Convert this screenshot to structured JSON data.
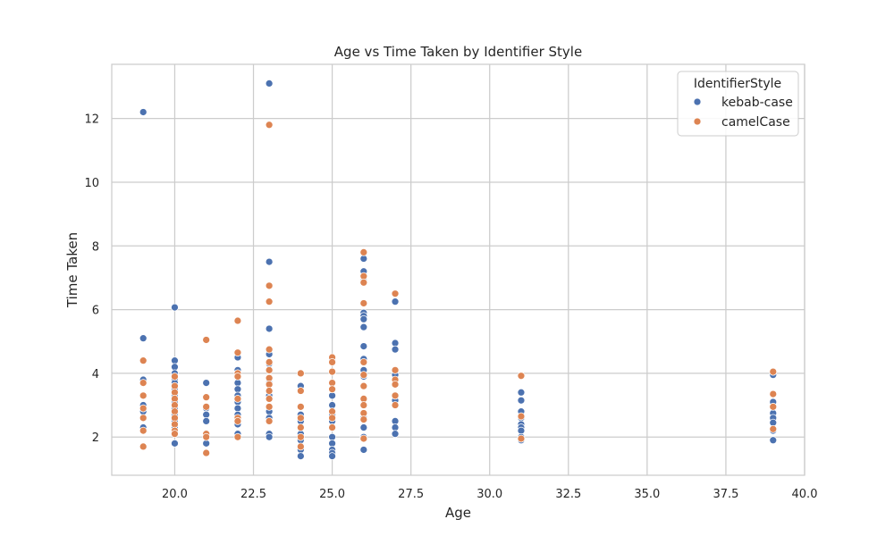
{
  "chart_data": {
    "type": "scatter",
    "title": "Age vs Time Taken by Identifier Style",
    "xlabel": "Age",
    "ylabel": "Time Taken",
    "xlim": [
      18.0,
      40.0
    ],
    "ylim": [
      0.8,
      13.7
    ],
    "x_ticks": [
      20.0,
      22.5,
      25.0,
      27.5,
      30.0,
      32.5,
      35.0,
      37.5,
      40.0
    ],
    "x_tick_labels": [
      "20.0",
      "22.5",
      "25.0",
      "27.5",
      "30.0",
      "32.5",
      "35.0",
      "37.5",
      "40.0"
    ],
    "y_ticks": [
      2,
      4,
      6,
      8,
      10,
      12
    ],
    "y_tick_labels": [
      "2",
      "4",
      "6",
      "8",
      "10",
      "12"
    ],
    "grid": true,
    "legend": {
      "title": "IdentifierStyle",
      "placement": "top-right"
    },
    "series": [
      {
        "name": "kebab-case",
        "color": "#4c72b0",
        "points": [
          [
            19,
            12.2
          ],
          [
            19,
            5.1
          ],
          [
            19,
            3.8
          ],
          [
            19,
            3.0
          ],
          [
            19,
            2.8
          ],
          [
            19,
            2.3
          ],
          [
            20,
            6.07
          ],
          [
            20,
            4.4
          ],
          [
            20,
            4.2
          ],
          [
            20,
            4.0
          ],
          [
            20,
            3.8
          ],
          [
            20,
            3.7
          ],
          [
            20,
            3.5
          ],
          [
            20,
            3.3
          ],
          [
            20,
            3.1
          ],
          [
            20,
            2.9
          ],
          [
            20,
            2.7
          ],
          [
            20,
            2.5
          ],
          [
            20,
            2.3
          ],
          [
            20,
            1.8
          ],
          [
            21,
            3.7
          ],
          [
            21,
            2.9
          ],
          [
            21,
            2.7
          ],
          [
            21,
            2.5
          ],
          [
            21,
            1.8
          ],
          [
            22,
            4.5
          ],
          [
            22,
            4.1
          ],
          [
            22,
            3.7
          ],
          [
            22,
            3.5
          ],
          [
            22,
            3.3
          ],
          [
            22,
            3.1
          ],
          [
            22,
            2.9
          ],
          [
            22,
            2.7
          ],
          [
            22,
            2.4
          ],
          [
            22,
            2.1
          ],
          [
            23,
            13.1
          ],
          [
            23,
            7.5
          ],
          [
            23,
            5.4
          ],
          [
            23,
            4.6
          ],
          [
            23,
            4.3
          ],
          [
            23,
            3.7
          ],
          [
            23,
            3.3
          ],
          [
            23,
            2.8
          ],
          [
            23,
            2.6
          ],
          [
            23,
            2.1
          ],
          [
            23,
            2.0
          ],
          [
            24,
            3.6
          ],
          [
            24,
            2.7
          ],
          [
            24,
            2.5
          ],
          [
            24,
            2.1
          ],
          [
            24,
            1.9
          ],
          [
            24,
            1.6
          ],
          [
            24,
            1.4
          ],
          [
            25,
            4.4
          ],
          [
            25,
            3.5
          ],
          [
            25,
            3.3
          ],
          [
            25,
            3.0
          ],
          [
            25,
            2.7
          ],
          [
            25,
            2.5
          ],
          [
            25,
            2.3
          ],
          [
            25,
            2.0
          ],
          [
            25,
            1.8
          ],
          [
            25,
            1.6
          ],
          [
            25,
            1.5
          ],
          [
            25,
            1.4
          ],
          [
            26,
            7.6
          ],
          [
            26,
            7.2
          ],
          [
            26,
            6.9
          ],
          [
            26,
            5.9
          ],
          [
            26,
            5.8
          ],
          [
            26,
            5.7
          ],
          [
            26,
            5.45
          ],
          [
            26,
            4.85
          ],
          [
            26,
            4.45
          ],
          [
            26,
            4.1
          ],
          [
            26,
            3.9
          ],
          [
            26,
            3.6
          ],
          [
            26,
            3.0
          ],
          [
            26,
            2.6
          ],
          [
            26,
            2.3
          ],
          [
            26,
            2.0
          ],
          [
            26,
            1.6
          ],
          [
            27,
            6.25
          ],
          [
            27,
            4.95
          ],
          [
            27,
            4.75
          ],
          [
            27,
            3.95
          ],
          [
            27,
            3.15
          ],
          [
            27,
            2.5
          ],
          [
            27,
            2.3
          ],
          [
            27,
            2.1
          ],
          [
            31,
            3.4
          ],
          [
            31,
            3.15
          ],
          [
            31,
            2.8
          ],
          [
            31,
            2.6
          ],
          [
            31,
            2.4
          ],
          [
            31,
            2.3
          ],
          [
            31,
            2.2
          ],
          [
            31,
            2.0
          ],
          [
            31,
            1.9
          ],
          [
            39,
            3.95
          ],
          [
            39,
            3.1
          ],
          [
            39,
            2.95
          ],
          [
            39,
            2.75
          ],
          [
            39,
            2.6
          ],
          [
            39,
            2.45
          ],
          [
            39,
            2.2
          ],
          [
            39,
            1.9
          ]
        ]
      },
      {
        "name": "camelCase",
        "color": "#dd8452",
        "points": [
          [
            19,
            4.4
          ],
          [
            19,
            3.7
          ],
          [
            19,
            3.3
          ],
          [
            19,
            2.9
          ],
          [
            19,
            2.6
          ],
          [
            19,
            2.2
          ],
          [
            19,
            1.7
          ],
          [
            20,
            3.9
          ],
          [
            20,
            3.6
          ],
          [
            20,
            3.4
          ],
          [
            20,
            3.2
          ],
          [
            20,
            3.0
          ],
          [
            20,
            2.8
          ],
          [
            20,
            2.6
          ],
          [
            20,
            2.4
          ],
          [
            20,
            2.2
          ],
          [
            20,
            2.1
          ],
          [
            21,
            5.05
          ],
          [
            21,
            3.25
          ],
          [
            21,
            2.95
          ],
          [
            21,
            2.1
          ],
          [
            21,
            2.0
          ],
          [
            21,
            1.5
          ],
          [
            22,
            5.65
          ],
          [
            22,
            4.65
          ],
          [
            22,
            4.0
          ],
          [
            22,
            3.9
          ],
          [
            22,
            3.2
          ],
          [
            22,
            2.6
          ],
          [
            22,
            2.5
          ],
          [
            22,
            2.0
          ],
          [
            23,
            11.8
          ],
          [
            23,
            6.75
          ],
          [
            23,
            6.25
          ],
          [
            23,
            4.75
          ],
          [
            23,
            4.35
          ],
          [
            23,
            4.1
          ],
          [
            23,
            3.85
          ],
          [
            23,
            3.65
          ],
          [
            23,
            3.45
          ],
          [
            23,
            3.2
          ],
          [
            23,
            2.95
          ],
          [
            23,
            2.5
          ],
          [
            24,
            4.0
          ],
          [
            24,
            3.45
          ],
          [
            24,
            2.95
          ],
          [
            24,
            2.6
          ],
          [
            24,
            2.3
          ],
          [
            24,
            2.0
          ],
          [
            24,
            1.7
          ],
          [
            25,
            4.5
          ],
          [
            25,
            4.35
          ],
          [
            25,
            4.05
          ],
          [
            25,
            3.7
          ],
          [
            25,
            3.5
          ],
          [
            25,
            2.8
          ],
          [
            25,
            2.6
          ],
          [
            25,
            2.3
          ],
          [
            26,
            7.8
          ],
          [
            26,
            7.05
          ],
          [
            26,
            6.85
          ],
          [
            26,
            6.2
          ],
          [
            26,
            4.35
          ],
          [
            26,
            3.95
          ],
          [
            26,
            3.6
          ],
          [
            26,
            3.2
          ],
          [
            26,
            3.0
          ],
          [
            26,
            2.75
          ],
          [
            26,
            2.55
          ],
          [
            26,
            1.95
          ],
          [
            27,
            6.5
          ],
          [
            27,
            4.1
          ],
          [
            27,
            3.8
          ],
          [
            27,
            3.65
          ],
          [
            27,
            3.3
          ],
          [
            27,
            3.0
          ],
          [
            31,
            3.92
          ],
          [
            31,
            2.65
          ],
          [
            31,
            1.95
          ],
          [
            39,
            4.05
          ],
          [
            39,
            3.35
          ],
          [
            39,
            2.95
          ],
          [
            39,
            2.25
          ]
        ]
      }
    ]
  }
}
